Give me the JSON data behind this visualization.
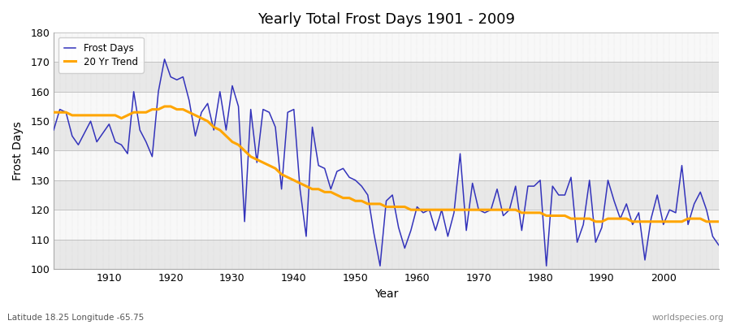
{
  "title": "Yearly Total Frost Days 1901 - 2009",
  "xlabel": "Year",
  "ylabel": "Frost Days",
  "lat_lon_label": "Latitude 18.25 Longitude -65.75",
  "watermark": "worldspecies.org",
  "ylim": [
    100,
    180
  ],
  "xlim": [
    1901,
    2009
  ],
  "yticks": [
    100,
    110,
    120,
    130,
    140,
    150,
    160,
    170,
    180
  ],
  "xticks": [
    1910,
    1920,
    1930,
    1940,
    1950,
    1960,
    1970,
    1980,
    1990,
    2000
  ],
  "frost_days_color": "#3333bb",
  "trend_color": "#ffa500",
  "background_color": "#ffffff",
  "plot_bg_color": "#f0f0f0",
  "stripe_color_light": "#f8f8f8",
  "stripe_color_dark": "#e8e8e8",
  "grid_color": "#cccccc",
  "frost_days": {
    "1901": 147,
    "1902": 154,
    "1903": 153,
    "1904": 145,
    "1905": 142,
    "1906": 146,
    "1907": 150,
    "1908": 143,
    "1909": 146,
    "1910": 149,
    "1911": 143,
    "1912": 142,
    "1913": 139,
    "1914": 160,
    "1915": 147,
    "1916": 143,
    "1917": 138,
    "1918": 160,
    "1919": 171,
    "1920": 165,
    "1921": 164,
    "1922": 165,
    "1923": 157,
    "1924": 145,
    "1925": 153,
    "1926": 156,
    "1927": 147,
    "1928": 160,
    "1929": 147,
    "1930": 162,
    "1931": 155,
    "1932": 116,
    "1933": 154,
    "1934": 136,
    "1935": 154,
    "1936": 153,
    "1937": 148,
    "1938": 127,
    "1939": 153,
    "1940": 154,
    "1941": 127,
    "1942": 111,
    "1943": 148,
    "1944": 135,
    "1945": 134,
    "1946": 127,
    "1947": 133,
    "1948": 134,
    "1949": 131,
    "1950": 130,
    "1951": 128,
    "1952": 125,
    "1953": 112,
    "1954": 101,
    "1955": 123,
    "1956": 125,
    "1957": 114,
    "1958": 107,
    "1959": 113,
    "1960": 121,
    "1961": 119,
    "1962": 120,
    "1963": 113,
    "1964": 120,
    "1965": 111,
    "1966": 119,
    "1967": 139,
    "1968": 113,
    "1969": 129,
    "1970": 120,
    "1971": 119,
    "1972": 120,
    "1973": 127,
    "1974": 118,
    "1975": 120,
    "1976": 128,
    "1977": 113,
    "1978": 128,
    "1979": 128,
    "1980": 130,
    "1981": 101,
    "1982": 128,
    "1983": 125,
    "1984": 125,
    "1985": 131,
    "1986": 109,
    "1987": 115,
    "1988": 130,
    "1989": 109,
    "1990": 114,
    "1991": 130,
    "1992": 123,
    "1993": 117,
    "1994": 122,
    "1995": 115,
    "1996": 119,
    "1997": 103,
    "1998": 117,
    "1999": 125,
    "2000": 115,
    "2001": 120,
    "2002": 119,
    "2003": 135,
    "2004": 115,
    "2005": 122,
    "2006": 126,
    "2007": 120,
    "2008": 111,
    "2009": 108
  },
  "trend_20yr": {
    "1901": 153,
    "1902": 153,
    "1903": 153,
    "1904": 152,
    "1905": 152,
    "1906": 152,
    "1907": 152,
    "1908": 152,
    "1909": 152,
    "1910": 152,
    "1911": 152,
    "1912": 151,
    "1913": 152,
    "1914": 153,
    "1915": 153,
    "1916": 153,
    "1917": 154,
    "1918": 154,
    "1919": 155,
    "1920": 155,
    "1921": 154,
    "1922": 154,
    "1923": 153,
    "1924": 152,
    "1925": 151,
    "1926": 150,
    "1927": 148,
    "1928": 147,
    "1929": 145,
    "1930": 143,
    "1931": 142,
    "1932": 140,
    "1933": 138,
    "1934": 137,
    "1935": 136,
    "1936": 135,
    "1937": 134,
    "1938": 132,
    "1939": 131,
    "1940": 130,
    "1941": 129,
    "1942": 128,
    "1943": 127,
    "1944": 127,
    "1945": 126,
    "1946": 126,
    "1947": 125,
    "1948": 124,
    "1949": 124,
    "1950": 123,
    "1951": 123,
    "1952": 122,
    "1953": 122,
    "1954": 122,
    "1955": 121,
    "1956": 121,
    "1957": 121,
    "1958": 121,
    "1959": 120,
    "1960": 120,
    "1961": 120,
    "1962": 120,
    "1963": 120,
    "1964": 120,
    "1965": 120,
    "1966": 120,
    "1967": 120,
    "1968": 120,
    "1969": 120,
    "1970": 120,
    "1971": 120,
    "1972": 120,
    "1973": 120,
    "1974": 120,
    "1975": 120,
    "1976": 120,
    "1977": 119,
    "1978": 119,
    "1979": 119,
    "1980": 119,
    "1981": 118,
    "1982": 118,
    "1983": 118,
    "1984": 118,
    "1985": 117,
    "1986": 117,
    "1987": 117,
    "1988": 117,
    "1989": 116,
    "1990": 116,
    "1991": 117,
    "1992": 117,
    "1993": 117,
    "1994": 117,
    "1995": 116,
    "1996": 116,
    "1997": 116,
    "1998": 116,
    "1999": 116,
    "2000": 116,
    "2001": 116,
    "2002": 116,
    "2003": 116,
    "2004": 117,
    "2005": 117,
    "2006": 117,
    "2007": 116,
    "2008": 116,
    "2009": 116
  }
}
